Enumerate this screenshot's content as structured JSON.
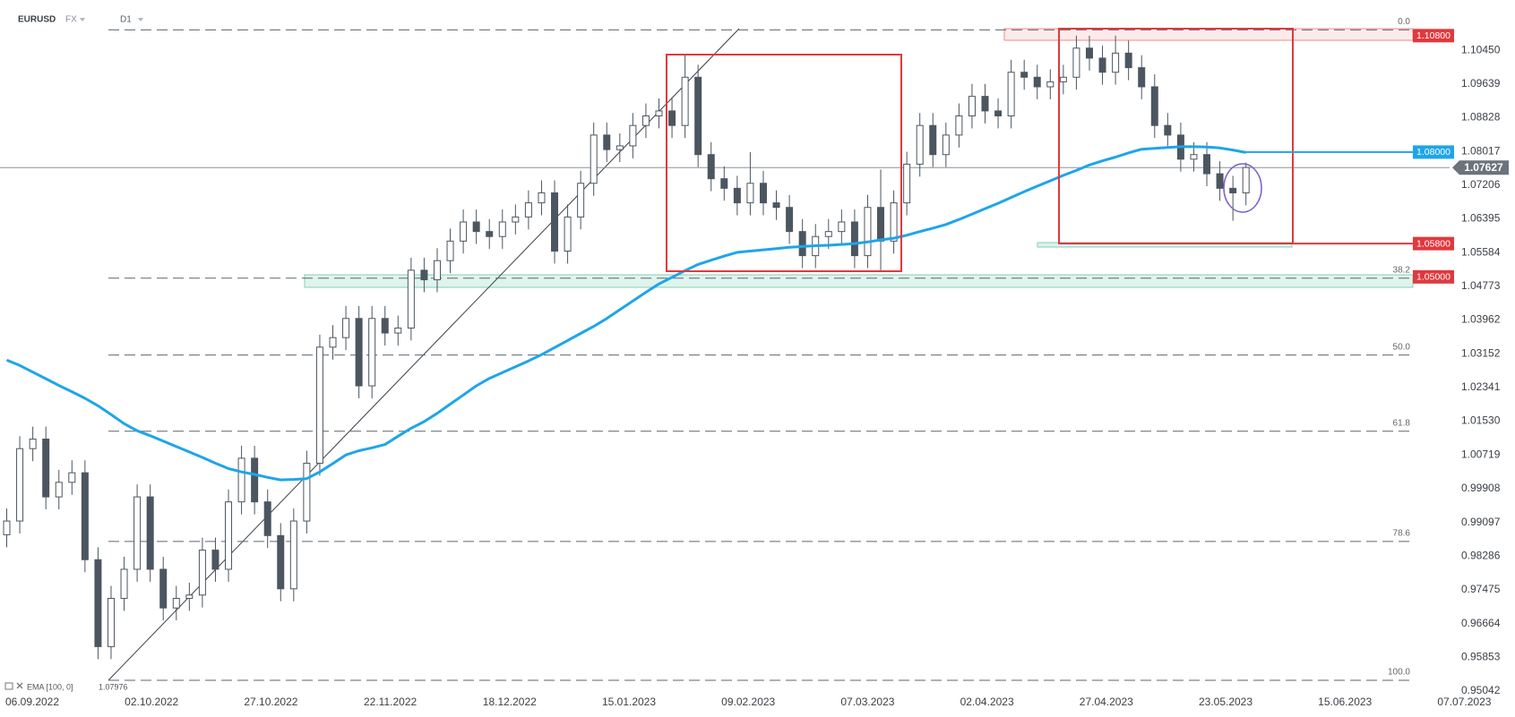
{
  "header": {
    "symbol": "EURUSD",
    "market": "FX",
    "timeframe": "D1"
  },
  "chart_data": {
    "type": "candlestick",
    "up_color": "#ffffff",
    "down_color": "#4b5660",
    "outline_color": "#4b5660",
    "x_labels": [
      "06.09.2022",
      "02.10.2022",
      "27.10.2022",
      "22.11.2022",
      "18.12.2022",
      "15.01.2023",
      "09.02.2023",
      "07.03.2023",
      "02.04.2023",
      "27.04.2023",
      "23.05.2023",
      "15.06.2023",
      "07.07.2023"
    ],
    "ylim": [
      0.95042,
      1.11657
    ],
    "yticks": [
      {
        "value": 1.1045,
        "label": "1.10450"
      },
      1.09639,
      1.08828,
      1.08017,
      1.07206,
      1.06395,
      1.05584,
      1.04773,
      1.03962,
      1.03152,
      1.02341,
      {
        "value": 1.0153,
        "label": "1.01530"
      },
      1.00719,
      0.99908,
      0.99097,
      0.98286,
      0.97475,
      0.96664,
      0.95853,
      0.95042
    ],
    "ohlc": [
      [
        0.988,
        0.9943,
        0.985,
        0.9913
      ],
      [
        0.9913,
        1.0117,
        0.9883,
        1.0087
      ],
      [
        1.0087,
        1.014,
        1.0057,
        1.011
      ],
      [
        1.011,
        1.014,
        0.9941,
        0.9971
      ],
      [
        0.9971,
        1.0036,
        0.9941,
        1.0006
      ],
      [
        1.0006,
        1.0059,
        0.9976,
        1.0029
      ],
      [
        1.0029,
        1.0059,
        0.979,
        0.982
      ],
      [
        0.982,
        0.985,
        0.9581,
        0.9611
      ],
      [
        0.9611,
        0.9757,
        0.9581,
        0.9727
      ],
      [
        0.9727,
        0.9827,
        0.9697,
        0.9797
      ],
      [
        0.9797,
        1.0001,
        0.9767,
        0.9971
      ],
      [
        0.9971,
        1.0001,
        0.9767,
        0.9797
      ],
      [
        0.9797,
        0.9827,
        0.9674,
        0.9704
      ],
      [
        0.9704,
        0.9757,
        0.9674,
        0.9727
      ],
      [
        0.9727,
        0.9765,
        0.9697,
        0.9735
      ],
      [
        0.9735,
        0.9873,
        0.9705,
        0.9843
      ],
      [
        0.9843,
        0.9873,
        0.9767,
        0.9797
      ],
      [
        0.9797,
        0.9989,
        0.9767,
        0.9959
      ],
      [
        0.9959,
        1.0094,
        0.9929,
        1.0064
      ],
      [
        1.0064,
        1.0094,
        0.9929,
        0.9959
      ],
      [
        0.9959,
        0.9989,
        0.9848,
        0.9878
      ],
      [
        0.9878,
        0.9908,
        0.972,
        0.975
      ],
      [
        0.975,
        0.9943,
        0.972,
        0.9913
      ],
      [
        0.9913,
        1.0082,
        0.9883,
        1.0052
      ],
      [
        1.0052,
        1.0361,
        1.0022,
        1.0331
      ],
      [
        1.0331,
        1.0384,
        1.0301,
        1.0354
      ],
      [
        1.0354,
        1.043,
        1.0324,
        1.04
      ],
      [
        1.04,
        1.043,
        1.0208,
        1.0238
      ],
      [
        1.0238,
        1.043,
        1.0208,
        1.04
      ],
      [
        1.04,
        1.043,
        1.0335,
        1.0365
      ],
      [
        1.0365,
        1.0407,
        1.0335,
        1.0377
      ],
      [
        1.0377,
        1.0546,
        1.0347,
        1.0516
      ],
      [
        1.0516,
        1.0546,
        1.0463,
        1.0493
      ],
      [
        1.0493,
        1.0569,
        1.0463,
        1.0539
      ],
      [
        1.0539,
        1.0616,
        1.0509,
        1.0586
      ],
      [
        1.0586,
        1.0662,
        1.0556,
        1.0632
      ],
      [
        1.0632,
        1.0662,
        1.0579,
        1.0609
      ],
      [
        1.0609,
        1.0639,
        1.0567,
        1.0597
      ],
      [
        1.0597,
        1.0662,
        1.0567,
        1.0632
      ],
      [
        1.0632,
        1.0674,
        1.0602,
        1.0644
      ],
      [
        1.0644,
        1.0708,
        1.0614,
        1.0678
      ],
      [
        1.0678,
        1.0732,
        1.0648,
        1.0702
      ],
      [
        1.0702,
        1.0732,
        1.0532,
        1.0562
      ],
      [
        1.0562,
        1.0674,
        1.0532,
        1.0644
      ],
      [
        1.0644,
        1.0755,
        1.0614,
        1.0725
      ],
      [
        1.0725,
        1.0871,
        1.0695,
        1.0841
      ],
      [
        1.0841,
        1.0871,
        1.0776,
        1.0806
      ],
      [
        1.0806,
        1.0845,
        1.0776,
        1.0815
      ],
      [
        1.0815,
        1.0894,
        1.0785,
        1.0864
      ],
      [
        1.0864,
        1.0917,
        1.0834,
        1.0887
      ],
      [
        1.0887,
        1.0929,
        1.0857,
        1.0899
      ],
      [
        1.0899,
        1.0929,
        1.0834,
        1.0864
      ],
      [
        1.0864,
        1.1033,
        1.0834,
        1.098
      ],
      [
        1.098,
        1.101,
        1.0764,
        1.0794
      ],
      [
        1.0794,
        1.0824,
        1.0706,
        1.0736
      ],
      [
        1.0736,
        1.0766,
        1.0683,
        1.0713
      ],
      [
        1.0713,
        1.0743,
        1.0648,
        1.0678
      ],
      [
        1.0678,
        1.08,
        1.0648,
        1.0725
      ],
      [
        1.0725,
        1.0755,
        1.0648,
        1.0678
      ],
      [
        1.0678,
        1.0708,
        1.0637,
        1.0667
      ],
      [
        1.0667,
        1.0697,
        1.0579,
        1.0609
      ],
      [
        1.0609,
        1.0639,
        1.0521,
        1.0551
      ],
      [
        1.0551,
        1.0627,
        1.0521,
        1.0597
      ],
      [
        1.0597,
        1.0639,
        1.0567,
        1.0609
      ],
      [
        1.0609,
        1.0662,
        1.0579,
        1.0632
      ],
      [
        1.0632,
        1.0662,
        1.0521,
        1.0551
      ],
      [
        1.0551,
        1.0697,
        1.0521,
        1.0667
      ],
      [
        1.0667,
        1.0758,
        1.0516,
        1.0586
      ],
      [
        1.0586,
        1.0708,
        1.0556,
        1.0678
      ],
      [
        1.0678,
        1.0801,
        1.0648,
        1.0771
      ],
      [
        1.0771,
        1.0894,
        1.0741,
        1.0864
      ],
      [
        1.0864,
        1.0894,
        1.0764,
        1.0794
      ],
      [
        1.0794,
        1.0871,
        1.0764,
        1.0841
      ],
      [
        1.0841,
        1.0917,
        1.0811,
        1.0887
      ],
      [
        1.0887,
        1.0964,
        1.0857,
        1.0934
      ],
      [
        1.0934,
        1.0964,
        1.0869,
        1.0899
      ],
      [
        1.0899,
        1.0929,
        1.0857,
        1.0887
      ],
      [
        1.0887,
        1.1022,
        1.0857,
        1.0992
      ],
      [
        1.0992,
        1.1022,
        1.095,
        1.098
      ],
      [
        1.098,
        1.101,
        1.0927,
        1.0957
      ],
      [
        1.0957,
        1.0999,
        1.0927,
        1.0969
      ],
      [
        1.0969,
        1.101,
        1.0939,
        1.098
      ],
      [
        1.098,
        1.108,
        1.095,
        1.105
      ],
      [
        1.105,
        1.108,
        1.0996,
        1.1026
      ],
      [
        1.1026,
        1.1056,
        1.0962,
        1.0992
      ],
      [
        1.0992,
        1.108,
        1.0962,
        1.1038
      ],
      [
        1.1038,
        1.1068,
        1.0973,
        1.1003
      ],
      [
        1.1003,
        1.1033,
        1.0927,
        1.0957
      ],
      [
        1.0957,
        1.0987,
        1.0834,
        1.0864
      ],
      [
        1.0864,
        1.0894,
        1.0811,
        1.0841
      ],
      [
        1.0841,
        1.0871,
        1.0753,
        1.0783
      ],
      [
        1.0783,
        1.0824,
        1.0753,
        1.0794
      ],
      [
        1.0794,
        1.0824,
        1.0718,
        1.0748
      ],
      [
        1.0748,
        1.0778,
        1.0683,
        1.0713
      ],
      [
        1.0713,
        1.0743,
        1.0635,
        1.0702
      ],
      [
        1.0702,
        1.0775,
        1.0672,
        1.0763
      ]
    ],
    "ema": {
      "name": "EMA [100, 0]",
      "value": 1.07976,
      "color": "#1ea5e9",
      "values": [
        1.03,
        1.0287,
        1.0271,
        1.0255,
        1.0239,
        1.0224,
        1.0208,
        1.019,
        1.0169,
        1.0147,
        1.013,
        1.0118,
        1.0105,
        1.0092,
        1.0079,
        1.0066,
        1.0052,
        1.0039,
        1.0031,
        1.0025,
        1.0018,
        1.0012,
        1.0013,
        1.0015,
        1.0031,
        1.0051,
        1.0072,
        1.0082,
        1.0089,
        1.0097,
        1.0117,
        1.0136,
        1.0152,
        1.0172,
        1.0194,
        1.0216,
        1.0238,
        1.0256,
        1.027,
        1.0284,
        1.0298,
        1.0313,
        1.033,
        1.0347,
        1.0364,
        1.0381,
        1.04,
        1.0421,
        1.0442,
        1.0463,
        1.0483,
        1.0499,
        1.0515,
        1.053,
        1.054,
        1.055,
        1.0559,
        1.0562,
        1.0565,
        1.0568,
        1.0571,
        1.0573,
        1.0575,
        1.0576,
        1.0578,
        1.058,
        1.0584,
        1.0589,
        1.0593,
        1.06,
        1.0609,
        1.0617,
        1.0626,
        1.0638,
        1.0651,
        1.0664,
        1.0677,
        1.0691,
        1.0705,
        1.0718,
        1.0731,
        1.0744,
        1.0756,
        1.0769,
        1.0779,
        1.0788,
        1.0798,
        1.0807,
        1.0809,
        1.0811,
        1.0813,
        1.0813,
        1.0812,
        1.081,
        1.0805,
        1.0799
      ]
    },
    "last_price": 1.07627,
    "levels": [
      {
        "value": 1.108,
        "label": "1.10800",
        "color": "#e0393e"
      },
      {
        "value": 1.08,
        "label": "1.08000",
        "color": "#1ea5e9"
      },
      {
        "value": 1.058,
        "label": "1.05800",
        "color": "#e0393e"
      },
      {
        "value": 1.05,
        "label": "1.05000",
        "color": "#e0393e"
      }
    ],
    "fibonacci": {
      "labels": [
        "0.0",
        "38.2",
        "50.0",
        "61.8",
        "78.6",
        "100.0"
      ],
      "values": [
        1.1094,
        1.0497,
        1.0312,
        1.0129,
        0.9864,
        0.953
      ]
    }
  }
}
